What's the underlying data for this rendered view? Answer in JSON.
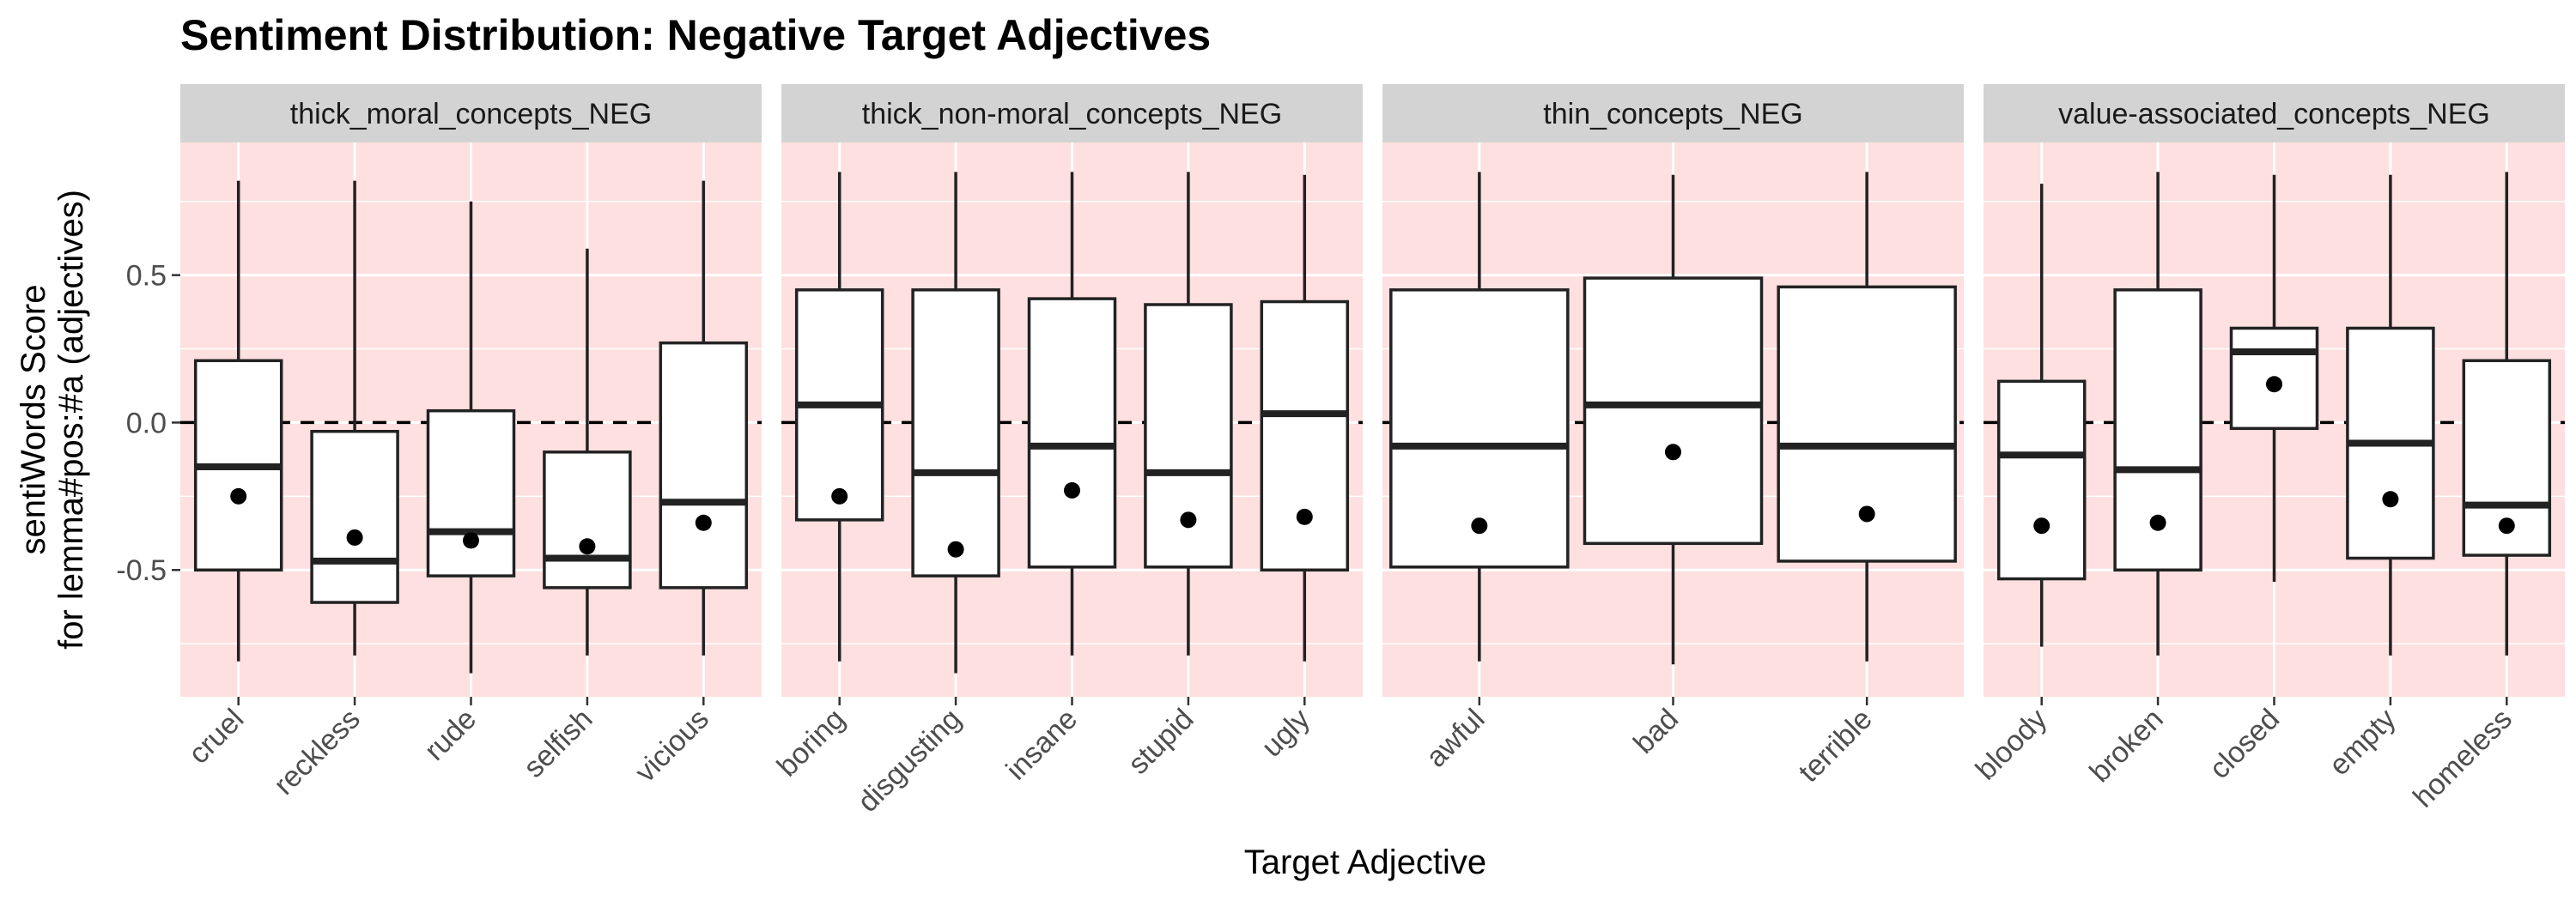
{
  "chart_data": {
    "type": "boxplot",
    "title": "Sentiment Distribution: Negative Target Adjectives",
    "xlabel": "Target Adjective",
    "ylabel_lines": [
      "sentiWords Score",
      "for lemma#pos:#a (adjectives)"
    ],
    "ylim": [
      -0.93,
      0.95
    ],
    "yticks": [
      0.5,
      0.0,
      -0.5
    ],
    "ytick_labels": [
      "0.5",
      "0.0",
      "-0.5"
    ],
    "reference_line": 0.0,
    "panel_fill": "#fde0df",
    "strip_fill": "#d3d3d3",
    "box_stroke": "#222222",
    "mean_color": "#000000",
    "grid": true,
    "facets": [
      {
        "label": "thick_moral_concepts_NEG",
        "categories": [
          "cruel",
          "reckless",
          "rude",
          "selfish",
          "vicious"
        ],
        "boxes": [
          {
            "lower_whisker": -0.81,
            "q1": -0.5,
            "median": -0.15,
            "q3": 0.21,
            "upper_whisker": 0.82,
            "mean": -0.25
          },
          {
            "lower_whisker": -0.79,
            "q1": -0.61,
            "median": -0.47,
            "q3": -0.03,
            "upper_whisker": 0.82,
            "mean": -0.39
          },
          {
            "lower_whisker": -0.85,
            "q1": -0.52,
            "median": -0.37,
            "q3": 0.04,
            "upper_whisker": 0.75,
            "mean": -0.4
          },
          {
            "lower_whisker": -0.79,
            "q1": -0.56,
            "median": -0.46,
            "q3": -0.1,
            "upper_whisker": 0.59,
            "mean": -0.42
          },
          {
            "lower_whisker": -0.79,
            "q1": -0.56,
            "median": -0.27,
            "q3": 0.27,
            "upper_whisker": 0.82,
            "mean": -0.34
          }
        ]
      },
      {
        "label": "thick_non-moral_concepts_NEG",
        "categories": [
          "boring",
          "disgusting",
          "insane",
          "stupid",
          "ugly"
        ],
        "boxes": [
          {
            "lower_whisker": -0.81,
            "q1": -0.33,
            "median": 0.06,
            "q3": 0.45,
            "upper_whisker": 0.85,
            "mean": -0.25
          },
          {
            "lower_whisker": -0.85,
            "q1": -0.52,
            "median": -0.17,
            "q3": 0.45,
            "upper_whisker": 0.85,
            "mean": -0.43
          },
          {
            "lower_whisker": -0.79,
            "q1": -0.49,
            "median": -0.08,
            "q3": 0.42,
            "upper_whisker": 0.85,
            "mean": -0.23
          },
          {
            "lower_whisker": -0.79,
            "q1": -0.49,
            "median": -0.17,
            "q3": 0.4,
            "upper_whisker": 0.85,
            "mean": -0.33
          },
          {
            "lower_whisker": -0.81,
            "q1": -0.5,
            "median": 0.03,
            "q3": 0.41,
            "upper_whisker": 0.84,
            "mean": -0.32
          }
        ]
      },
      {
        "label": "thin_concepts_NEG",
        "categories": [
          "awful",
          "bad",
          "terrible"
        ],
        "boxes": [
          {
            "lower_whisker": -0.81,
            "q1": -0.49,
            "median": -0.08,
            "q3": 0.45,
            "upper_whisker": 0.85,
            "mean": -0.35
          },
          {
            "lower_whisker": -0.82,
            "q1": -0.41,
            "median": 0.06,
            "q3": 0.49,
            "upper_whisker": 0.84,
            "mean": -0.1
          },
          {
            "lower_whisker": -0.81,
            "q1": -0.47,
            "median": -0.08,
            "q3": 0.46,
            "upper_whisker": 0.85,
            "mean": -0.31
          }
        ]
      },
      {
        "label": "value-associated_concepts_NEG",
        "categories": [
          "bloody",
          "broken",
          "closed",
          "empty",
          "homeless"
        ],
        "boxes": [
          {
            "lower_whisker": -0.76,
            "q1": -0.53,
            "median": -0.11,
            "q3": 0.14,
            "upper_whisker": 0.81,
            "mean": -0.35
          },
          {
            "lower_whisker": -0.79,
            "q1": -0.5,
            "median": -0.16,
            "q3": 0.45,
            "upper_whisker": 0.85,
            "mean": -0.34
          },
          {
            "lower_whisker": -0.54,
            "q1": -0.02,
            "median": 0.24,
            "q3": 0.32,
            "upper_whisker": 0.84,
            "mean": 0.13
          },
          {
            "lower_whisker": -0.79,
            "q1": -0.46,
            "median": -0.07,
            "q3": 0.32,
            "upper_whisker": 0.84,
            "mean": -0.26
          },
          {
            "lower_whisker": -0.79,
            "q1": -0.45,
            "median": -0.28,
            "q3": 0.21,
            "upper_whisker": 0.85,
            "mean": -0.35
          }
        ]
      }
    ]
  }
}
